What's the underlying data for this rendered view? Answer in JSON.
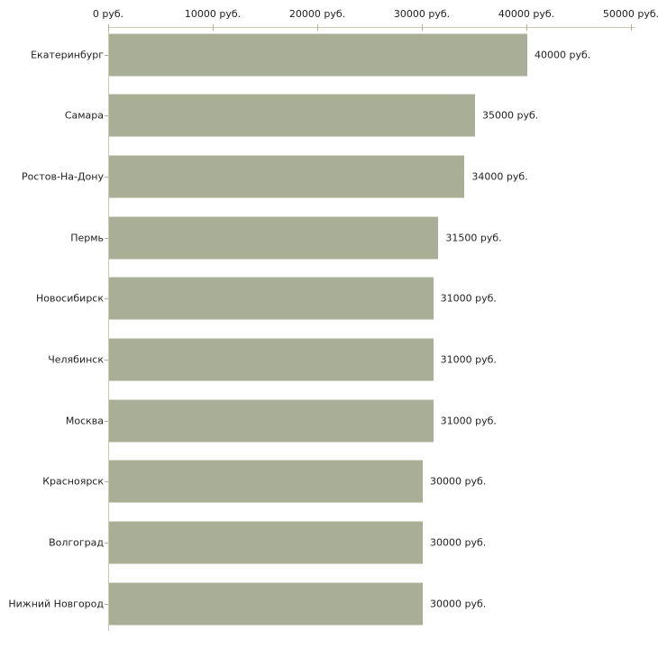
{
  "chart_data": {
    "type": "bar",
    "orientation": "horizontal",
    "title": "",
    "xlabel": "",
    "ylabel": "",
    "categories": [
      "Екатеринбург",
      "Самара",
      "Ростов-На-Дону",
      "Пермь",
      "Новосибирск",
      "Челябинск",
      "Москва",
      "Красноярск",
      "Волгоград",
      "Нижний Новгород"
    ],
    "values": [
      40000,
      35000,
      34000,
      31500,
      31000,
      31000,
      31000,
      30000,
      30000,
      30000
    ],
    "value_labels": [
      "40000 руб.",
      "35000 руб.",
      "34000 руб.",
      "31500 руб.",
      "31000 руб.",
      "31000 руб.",
      "31000 руб.",
      "30000 руб.",
      "30000 руб.",
      "30000 руб."
    ],
    "x_axis": {
      "position": "top",
      "xlim": [
        0,
        50000
      ],
      "ticks": [
        0,
        10000,
        20000,
        30000,
        40000,
        50000
      ],
      "tick_labels": [
        "0 руб.",
        "10000 руб.",
        "20000 руб.",
        "30000 руб.",
        "40000 руб.",
        "50000 руб."
      ]
    },
    "grid": false,
    "legend": false,
    "colors": {
      "bar": "#a9ae96",
      "axis_line": "#ccc9b3",
      "tick": "#b3af93",
      "text": "#222222",
      "background": "#ffffff"
    }
  }
}
